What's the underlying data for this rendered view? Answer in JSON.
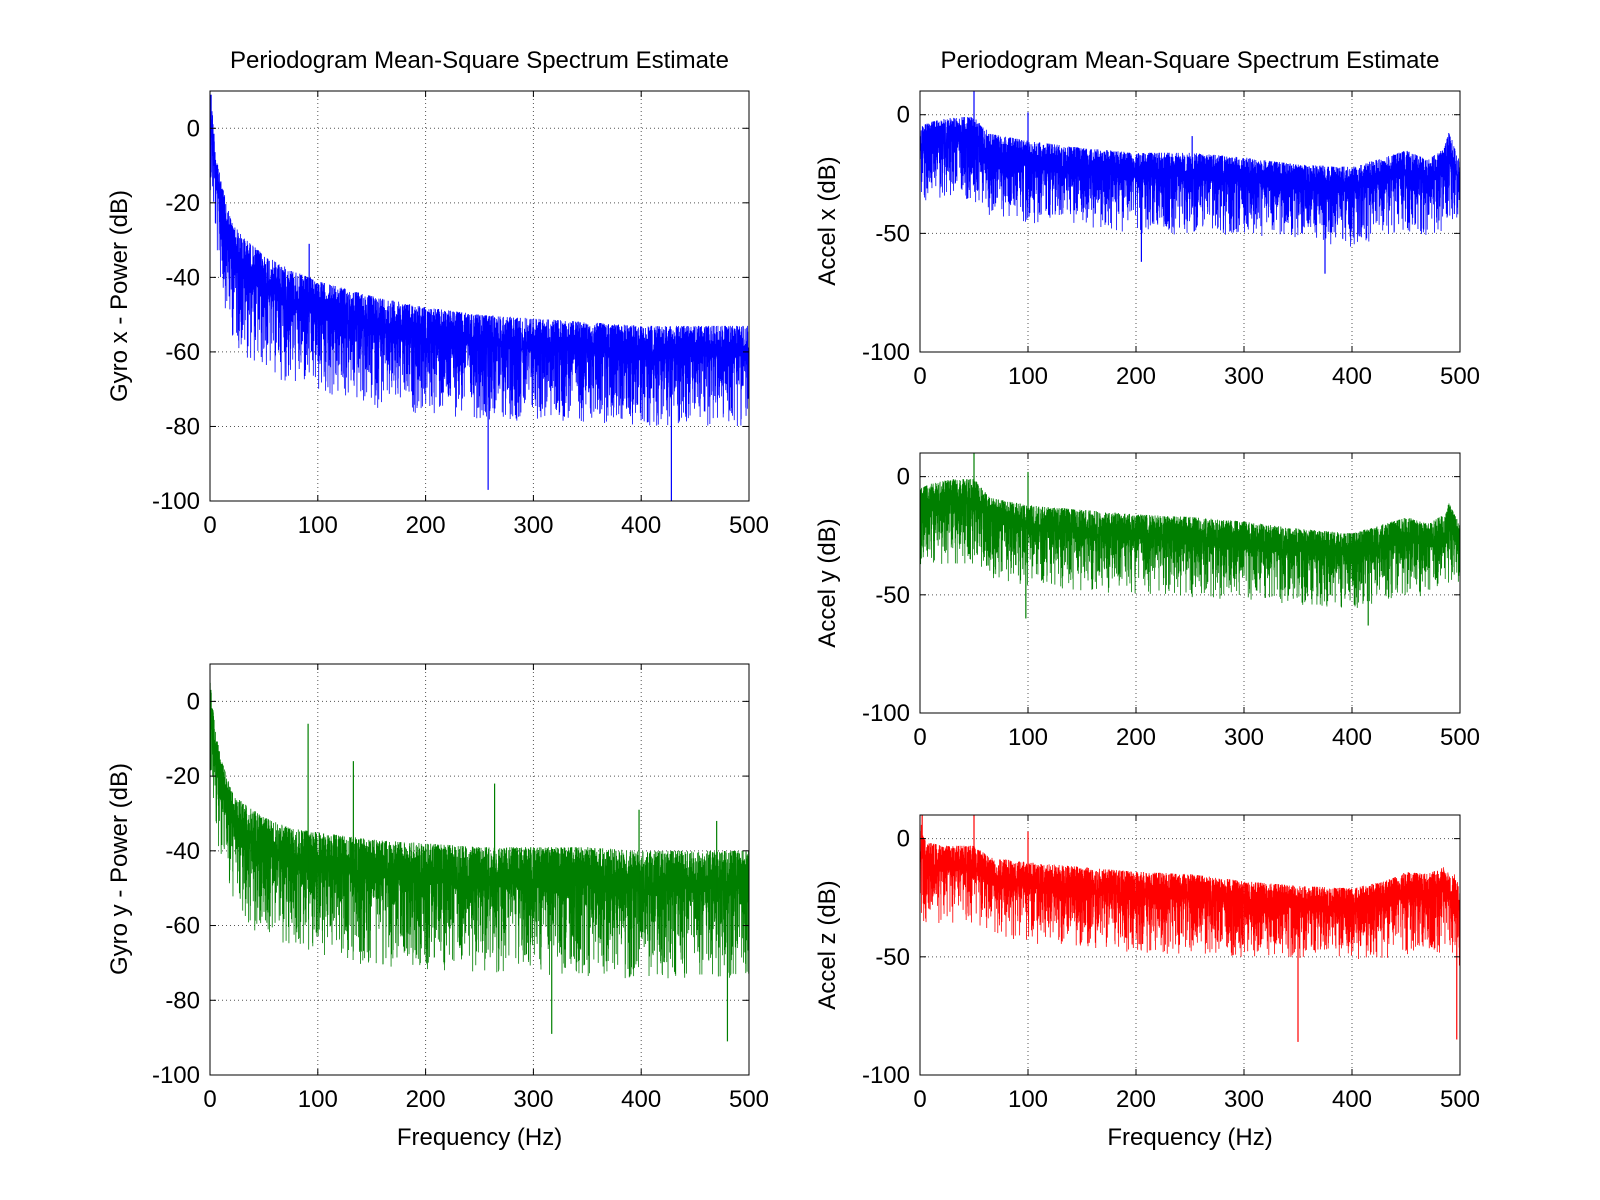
{
  "figure": {
    "background": "#ffffff",
    "axes_color": "#000000",
    "grid_color": "#555555"
  },
  "chart_data": [
    {
      "type": "line",
      "title": "Periodogram Mean-Square Spectrum Estimate",
      "xlabel": "",
      "ylabel": "Gyro x - Power (dB)",
      "xlim": [
        0,
        500
      ],
      "ylim": [
        -100,
        10
      ],
      "xticks": [
        0,
        100,
        200,
        300,
        400,
        500
      ],
      "yticks": [
        0,
        -20,
        -40,
        -60,
        -80,
        -100
      ],
      "grid": true,
      "series": [
        {
          "color": "#0000ff",
          "envelope": {
            "x": [
              0,
              2,
              5,
              10,
              20,
              30,
              50,
              75,
              100,
              150,
              200,
              250,
              300,
              350,
              400,
              450,
              500
            ],
            "upper": [
              10,
              5,
              -5,
              -14,
              -25,
              -29,
              -34,
              -38,
              -41,
              -45,
              -48,
              -50,
              -51,
              -52,
              -53,
              -53,
              -53
            ],
            "lower": [
              -15,
              -20,
              -30,
              -42,
              -55,
              -60,
              -64,
              -68,
              -71,
              -74,
              -76,
              -77,
              -78,
              -78,
              -79,
              -79,
              -79
            ]
          },
          "spikes": [
            {
              "x": 1,
              "y": 9
            },
            {
              "x": 92,
              "y": -31
            },
            {
              "x": 258,
              "y": -97
            },
            {
              "x": 428,
              "y": -100
            }
          ]
        }
      ]
    },
    {
      "type": "line",
      "title": "",
      "xlabel": "Frequency (Hz)",
      "ylabel": "Gyro y - Power (dB)",
      "xlim": [
        0,
        500
      ],
      "ylim": [
        -100,
        10
      ],
      "xticks": [
        0,
        100,
        200,
        300,
        400,
        500
      ],
      "yticks": [
        0,
        -20,
        -40,
        -60,
        -80,
        -100
      ],
      "grid": true,
      "series": [
        {
          "color": "#007f00",
          "envelope": {
            "x": [
              0,
              2,
              5,
              10,
              20,
              30,
              50,
              75,
              100,
              150,
              200,
              250,
              300,
              350,
              400,
              450,
              500
            ],
            "upper": [
              6,
              0,
              -8,
              -15,
              -24,
              -27,
              -31,
              -34,
              -35,
              -37,
              -38,
              -39,
              -39,
              -39,
              -40,
              -40,
              -40
            ],
            "lower": [
              -18,
              -22,
              -32,
              -42,
              -52,
              -58,
              -62,
              -65,
              -67,
              -70,
              -71,
              -72,
              -72,
              -73,
              -73,
              -73,
              -73
            ]
          },
          "spikes": [
            {
              "x": 91,
              "y": -6
            },
            {
              "x": 133,
              "y": -16
            },
            {
              "x": 264,
              "y": -22
            },
            {
              "x": 398,
              "y": -29
            },
            {
              "x": 470,
              "y": -32
            },
            {
              "x": 317,
              "y": -89
            },
            {
              "x": 480,
              "y": -91
            }
          ]
        }
      ]
    },
    {
      "type": "line",
      "title": "Periodogram Mean-Square Spectrum Estimate",
      "xlabel": "",
      "ylabel": "Accel x (dB)",
      "xlim": [
        0,
        500
      ],
      "ylim": [
        -100,
        10
      ],
      "xticks": [
        0,
        100,
        200,
        300,
        400,
        500
      ],
      "yticks": [
        0,
        -50,
        -100
      ],
      "grid": true,
      "series": [
        {
          "color": "#0000ff",
          "envelope": {
            "x": [
              0,
              10,
              30,
              50,
              65,
              100,
              150,
              200,
              250,
              300,
              350,
              400,
              430,
              450,
              470,
              485,
              490,
              495,
              500
            ],
            "upper": [
              -5,
              -3,
              -1,
              -1,
              -8,
              -11,
              -14,
              -16,
              -16,
              -18,
              -21,
              -22,
              -18,
              -15,
              -19,
              -14,
              -7,
              -14,
              -20
            ],
            "lower": [
              -38,
              -35,
              -34,
              -35,
              -42,
              -45,
              -47,
              -49,
              -50,
              -50,
              -52,
              -55,
              -50,
              -48,
              -50,
              -48,
              -42,
              -45,
              -50
            ]
          },
          "spikes": [
            {
              "x": 50,
              "y": 10
            },
            {
              "x": 100,
              "y": 1
            },
            {
              "x": 252,
              "y": -9
            },
            {
              "x": 375,
              "y": -67
            },
            {
              "x": 205,
              "y": -62
            }
          ]
        }
      ]
    },
    {
      "type": "line",
      "title": "",
      "xlabel": "",
      "ylabel": "Accel y (dB)",
      "xlim": [
        0,
        500
      ],
      "ylim": [
        -100,
        10
      ],
      "xticks": [
        0,
        100,
        200,
        300,
        400,
        500
      ],
      "yticks": [
        0,
        -50,
        -100
      ],
      "grid": true,
      "series": [
        {
          "color": "#007f00",
          "envelope": {
            "x": [
              0,
              10,
              30,
              50,
              65,
              100,
              150,
              200,
              250,
              300,
              350,
              400,
              430,
              450,
              470,
              485,
              490,
              495,
              500
            ],
            "upper": [
              -5,
              -3,
              -1,
              -1,
              -9,
              -12,
              -14,
              -16,
              -17,
              -19,
              -22,
              -24,
              -20,
              -17,
              -20,
              -16,
              -11,
              -16,
              -20
            ],
            "lower": [
              -38,
              -37,
              -36,
              -36,
              -42,
              -45,
              -47,
              -49,
              -50,
              -51,
              -53,
              -55,
              -52,
              -50,
              -50,
              -48,
              -44,
              -46,
              -50
            ]
          },
          "spikes": [
            {
              "x": 50,
              "y": 10
            },
            {
              "x": 100,
              "y": 2
            },
            {
              "x": 98,
              "y": -60
            },
            {
              "x": 415,
              "y": -63
            }
          ]
        }
      ]
    },
    {
      "type": "line",
      "title": "",
      "xlabel": "Frequency (Hz)",
      "ylabel": "Accel z (dB)",
      "xlim": [
        0,
        500
      ],
      "ylim": [
        -100,
        10
      ],
      "xticks": [
        0,
        100,
        200,
        300,
        400,
        500
      ],
      "yticks": [
        0,
        -50,
        -100
      ],
      "grid": true,
      "series": [
        {
          "color": "#ff0000",
          "envelope": {
            "x": [
              0,
              5,
              20,
              50,
              65,
              100,
              150,
              200,
              250,
              300,
              350,
              400,
              430,
              450,
              470,
              485,
              490,
              495,
              500
            ],
            "upper": [
              8,
              -1,
              -3,
              -3,
              -8,
              -10,
              -12,
              -14,
              -15,
              -18,
              -20,
              -21,
              -18,
              -14,
              -15,
              -12,
              -15,
              -15,
              -20
            ],
            "lower": [
              -38,
              -36,
              -35,
              -35,
              -40,
              -43,
              -45,
              -47,
              -48,
              -49,
              -50,
              -51,
              -50,
              -48,
              -49,
              -47,
              -46,
              -50,
              -55
            ]
          },
          "spikes": [
            {
              "x": 2,
              "y": 10
            },
            {
              "x": 50,
              "y": 10
            },
            {
              "x": 100,
              "y": 3
            },
            {
              "x": 350,
              "y": -86
            },
            {
              "x": 497,
              "y": -85
            }
          ]
        }
      ]
    }
  ]
}
